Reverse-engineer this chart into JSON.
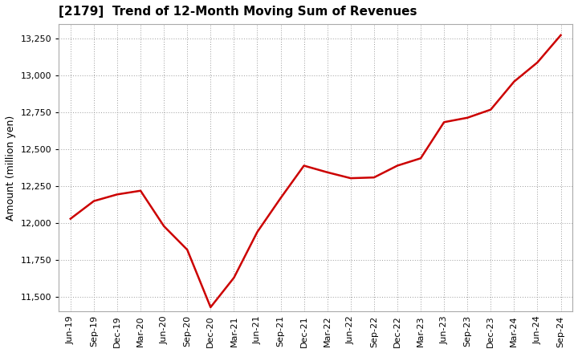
{
  "title": "[2179]  Trend of 12-Month Moving Sum of Revenues",
  "ylabel": "Amount (million yen)",
  "line_color": "#cc0000",
  "background_color": "#ffffff",
  "plot_bg_color": "#ffffff",
  "grid_color": "#999999",
  "ylim": [
    11400,
    13350
  ],
  "yticks": [
    11500,
    11750,
    12000,
    12250,
    12500,
    12750,
    13000,
    13250
  ],
  "x_labels": [
    "Jun-19",
    "Sep-19",
    "Dec-19",
    "Mar-20",
    "Jun-20",
    "Sep-20",
    "Dec-20",
    "Mar-21",
    "Jun-21",
    "Sep-21",
    "Dec-21",
    "Mar-22",
    "Jun-22",
    "Sep-22",
    "Dec-22",
    "Mar-23",
    "Jun-23",
    "Sep-23",
    "Dec-23",
    "Mar-24",
    "Jun-24",
    "Sep-24"
  ],
  "y_values": [
    12030,
    12150,
    12195,
    12220,
    11980,
    11820,
    11430,
    11630,
    11940,
    12170,
    12390,
    12345,
    12305,
    12310,
    12390,
    12440,
    12685,
    12715,
    12770,
    12960,
    13090,
    13275
  ]
}
